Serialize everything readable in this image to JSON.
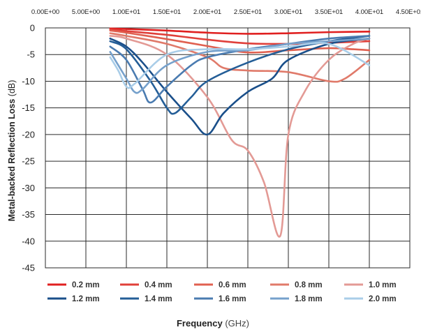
{
  "chart_data": {
    "type": "line",
    "title": "",
    "xlabel": "Frequency",
    "xlabel_unit": "(GHz)",
    "ylabel": "Metal-backed Reflection Loss",
    "ylabel_unit": "(dB)",
    "x_tick_labels": [
      "0.00E+00",
      "5.00E+00",
      "1.00E+01",
      "1.50E+01",
      "2.00E+01",
      "2.50E+01",
      "3.00E+01",
      "3.50E+01",
      "4.00E+01",
      "4.50E+01"
    ],
    "y_tick_labels": [
      "0",
      "-5",
      "-10",
      "-15",
      "-20",
      "-25",
      "-30",
      "-35",
      "-40",
      "-45"
    ],
    "xlim": [
      0,
      45
    ],
    "ylim": [
      -45,
      0
    ],
    "x_tick_position": "top",
    "grid": true,
    "legend_position": "bottom",
    "series": [
      {
        "name": "0.2 mm",
        "color": "#e02020",
        "x": [
          8,
          10,
          15,
          20,
          25,
          30,
          35,
          40
        ],
        "y": [
          -0.1,
          -0.2,
          -0.5,
          -0.9,
          -1.1,
          -1.0,
          -0.8,
          -0.7
        ]
      },
      {
        "name": "0.4 mm",
        "color": "#e0403a",
        "x": [
          8,
          10,
          15,
          20,
          25,
          30,
          35,
          40
        ],
        "y": [
          -0.3,
          -0.6,
          -1.3,
          -2.2,
          -2.9,
          -3.0,
          -2.8,
          -2.5
        ]
      },
      {
        "name": "0.6 mm",
        "color": "#e06050",
        "x": [
          8,
          10,
          15,
          20,
          25,
          30,
          35,
          38,
          40
        ],
        "y": [
          -0.5,
          -0.9,
          -2.1,
          -3.4,
          -4.6,
          -4.2,
          -3.8,
          -4.0,
          -4.2
        ]
      },
      {
        "name": "0.8 mm",
        "color": "#e07a6a",
        "x": [
          8,
          10,
          15,
          20,
          22,
          25,
          30,
          35,
          37,
          40
        ],
        "y": [
          -1,
          -1.5,
          -3,
          -5.5,
          -7.5,
          -8,
          -8.3,
          -10,
          -9.5,
          -6
        ]
      },
      {
        "name": "1.0 mm",
        "color": "#e39a95",
        "x": [
          8,
          10,
          15,
          20,
          23,
          25,
          27,
          29,
          30,
          32,
          35,
          38,
          40
        ],
        "y": [
          -1.5,
          -2,
          -5,
          -13,
          -21,
          -23,
          -29,
          -39,
          -20,
          -12,
          -6,
          -3,
          -2
        ]
      },
      {
        "name": "1.2 mm",
        "color": "#1a4f8a",
        "x": [
          8,
          10,
          12,
          15,
          18,
          20,
          22,
          25,
          28,
          30,
          35,
          40
        ],
        "y": [
          -2,
          -3.5,
          -6.5,
          -12,
          -17,
          -20,
          -16,
          -12,
          -9.5,
          -6,
          -3,
          -2
        ]
      },
      {
        "name": "1.4 mm",
        "color": "#245e97",
        "x": [
          8,
          10,
          13,
          15,
          16,
          18,
          20,
          25,
          30,
          35,
          40
        ],
        "y": [
          -2.5,
          -4,
          -10,
          -15,
          -16,
          -13,
          -10,
          -6.5,
          -4,
          -2.5,
          -1.5
        ]
      },
      {
        "name": "1.6 mm",
        "color": "#4a7bb0",
        "x": [
          8,
          10,
          12,
          13,
          15,
          18,
          20,
          25,
          30,
          35,
          40
        ],
        "y": [
          -3.5,
          -6,
          -11.5,
          -14,
          -11,
          -7,
          -5.5,
          -4,
          -3,
          -2,
          -1.5
        ]
      },
      {
        "name": "1.8 mm",
        "color": "#76a1cc",
        "x": [
          8,
          10,
          11,
          12,
          15,
          20,
          25,
          30,
          35,
          40
        ],
        "y": [
          -4.5,
          -9.5,
          -12,
          -11.5,
          -7,
          -4.5,
          -4.2,
          -3,
          -2.5,
          -2
        ]
      },
      {
        "name": "2.0 mm",
        "color": "#a9cde8",
        "x": [
          8,
          9,
          10,
          11,
          15,
          20,
          25,
          30,
          35,
          40
        ],
        "y": [
          -5.5,
          -8,
          -11,
          -10.5,
          -5,
          -4,
          -4,
          -3.5,
          -3,
          -7
        ]
      }
    ]
  }
}
